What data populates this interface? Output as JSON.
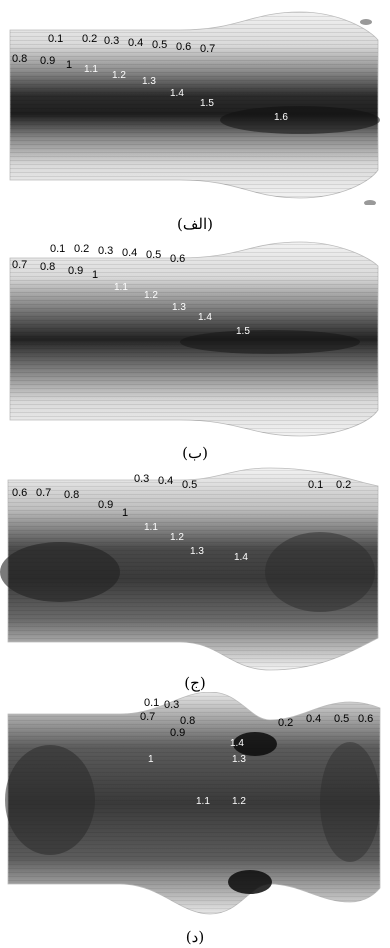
{
  "panels": [
    {
      "caption": "(الف)",
      "labels": [
        "0.1",
        "0.2",
        "0.3",
        "0.4",
        "0.5",
        "0.6",
        "0.7",
        "0.8",
        "0.9",
        "1",
        "1.1",
        "1.2",
        "1.3",
        "1.4",
        "1.5",
        "1.6"
      ]
    },
    {
      "caption": "(ب)",
      "labels": [
        "0.1",
        "0.2",
        "0.3",
        "0.4",
        "0.5",
        "0.6",
        "0.7",
        "0.8",
        "0.9",
        "1",
        "1.1",
        "1.2",
        "1.3",
        "1.4",
        "1.5"
      ]
    },
    {
      "caption": "(ج)",
      "labels": [
        "0.3",
        "0.4",
        "0.5",
        "0.6",
        "0.7",
        "0.8",
        "0.9",
        "1",
        "1.1",
        "1.2",
        "1.3",
        "1.4",
        "0.1",
        "0.2"
      ]
    },
    {
      "caption": "(د)",
      "labels": [
        "0.1",
        "0.3",
        "0.7",
        "0.8",
        "0.9",
        "1",
        "1.4",
        "1.3",
        "1.1",
        "1.2",
        "0.2",
        "0.4",
        "0.5",
        "0.6"
      ]
    }
  ]
}
